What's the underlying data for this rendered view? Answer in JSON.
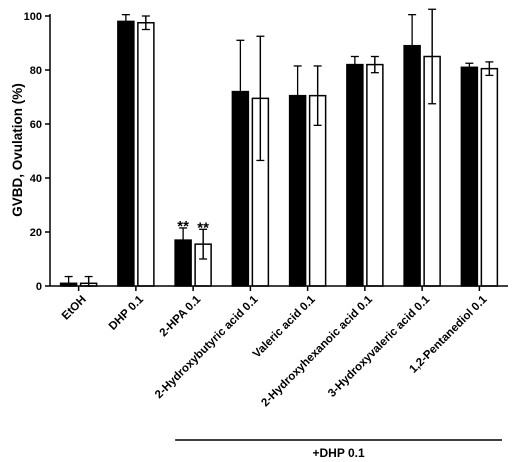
{
  "chart_data": {
    "type": "bar",
    "ylabel": "GVBD, Ovulation (%)",
    "ylim": [
      0,
      100
    ],
    "yticks": [
      "0",
      "20",
      "40",
      "60",
      "80",
      "100"
    ],
    "categories": [
      "EtOH",
      "DHP 0.1",
      "2-HPA 0.1",
      "2-Hydroxybutyric acid 0.1",
      "Valeric acid 0.1",
      "2-Hydroxyhexanoic acid 0.1",
      "3-Hydroxyvaleric acid 0.1",
      "1,2-Pentanediol 0.1"
    ],
    "series": [
      {
        "fill": "#000000",
        "values": [
          1,
          98,
          17,
          72,
          70.5,
          82,
          89,
          81
        ],
        "errors": [
          2.5,
          2.5,
          4.5,
          19,
          11,
          3,
          11.5,
          1.5
        ]
      },
      {
        "fill": "#ffffff",
        "values": [
          1,
          97.5,
          15.5,
          69.5,
          70.5,
          82,
          85,
          80.5
        ],
        "errors": [
          2.5,
          2.5,
          5.5,
          23,
          11,
          3,
          17.5,
          2.5
        ]
      }
    ],
    "annotations": [
      {
        "category": "2-HPA 0.1",
        "series": 0,
        "text": "**"
      },
      {
        "category": "2-HPA 0.1",
        "series": 1,
        "text": "**"
      }
    ],
    "group_label": "+DHP 0.1",
    "group_span": [
      "2-HPA 0.1",
      "1,2-Pentanediol 0.1"
    ]
  }
}
